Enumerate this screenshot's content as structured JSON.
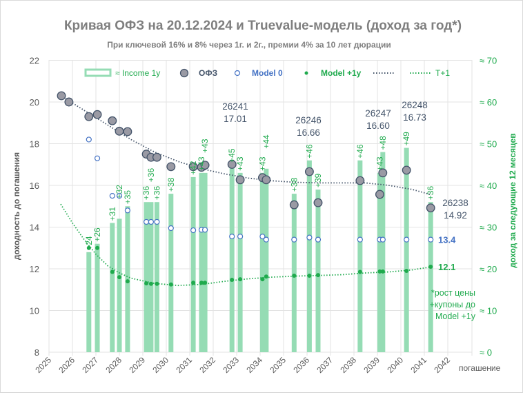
{
  "chart_data": {
    "type": "scatter",
    "title": "Кривая ОФЗ на 20.12.2024 и Truevalue-модель (доход за год*)",
    "subtitle": "При ключевой 16% и 8% через 1г. и 2г., премии 4% за 10 лет дюрации",
    "xlabel": "погашение",
    "ylabel": "доходность до погашения",
    "y2label": "доход за следующие 12 месяцев",
    "xlim": [
      2025,
      2042
    ],
    "ylim": [
      8,
      22
    ],
    "y2lim": [
      0,
      70
    ],
    "x_ticks": [
      "2025",
      "2026",
      "2027",
      "2028",
      "2029",
      "2030",
      "2031",
      "2032",
      "2033",
      "2034",
      "2035",
      "2036",
      "2037",
      "2038",
      "2039",
      "2040",
      "2041",
      "2042"
    ],
    "y_ticks": [
      "8",
      "10",
      "12",
      "14",
      "16",
      "18",
      "20",
      "22"
    ],
    "y2_ticks": [
      "≈ 0",
      "≈ 10",
      "≈ 20",
      "≈ 30",
      "≈ 40",
      "≈ 50",
      "≈ 60",
      "≈ 70"
    ],
    "grid": true,
    "legend_position": "top",
    "legend": [
      "≈ Income 1y",
      "ОФЗ",
      "Model 0",
      "Model +1y",
      "",
      "T+1"
    ],
    "colors": {
      "ofz_fill": "#9a9aa4",
      "ofz_stroke": "#44546a",
      "model0": "#4472c4",
      "model1y": "#1faa4d",
      "income": "#95dcb4",
      "trend": "#44546a",
      "t1": "#1faa4d",
      "label_blue": "#44546a",
      "label_green": "#1faa4d"
    },
    "bonds": [
      {
        "year": 2025.53,
        "ofz": 20.3,
        "model0": null,
        "model1y": null,
        "income": null
      },
      {
        "year": 2025.85,
        "ofz": 20.0,
        "model0": null,
        "model1y": null,
        "income": null
      },
      {
        "year": 2026.7,
        "ofz": 19.3,
        "model0": 18.2,
        "model1y": 13.0,
        "income": 24
      },
      {
        "year": 2027.06,
        "ofz": 19.4,
        "model0": 17.3,
        "model1y": 13.0,
        "income": 26
      },
      {
        "year": 2027.7,
        "ofz": 19.1,
        "model0": 15.5,
        "model1y": 11.85,
        "income": 31
      },
      {
        "year": 2028.0,
        "ofz": 18.6,
        "model0": 15.5,
        "model1y": 11.6,
        "income": 32
      },
      {
        "year": 2028.35,
        "ofz": 18.58,
        "model0": 14.8,
        "model1y": 11.4,
        "income": 35
      },
      {
        "year": 2029.15,
        "ofz": 17.5,
        "model0": 14.25,
        "model1y": 11.3,
        "income": 36
      },
      {
        "year": 2029.35,
        "ofz": 17.35,
        "model0": 14.25,
        "model1y": 11.28,
        "income": 36
      },
      {
        "year": 2029.6,
        "ofz": 17.35,
        "model0": 14.25,
        "model1y": 11.28,
        "income": 36
      },
      {
        "year": 2030.2,
        "ofz": 16.9,
        "model0": 13.95,
        "model1y": 11.25,
        "income": 38
      },
      {
        "year": 2031.15,
        "ofz": 16.9,
        "model0": 13.85,
        "model1y": 11.33,
        "income": 42
      },
      {
        "year": 2031.5,
        "ofz": 16.87,
        "model0": 13.87,
        "model1y": 11.33,
        "income": 43
      },
      {
        "year": 2031.65,
        "ofz": 16.97,
        "model0": 13.87,
        "model1y": 11.33,
        "income": 43
      },
      {
        "year": 2032.8,
        "ofz": 17.01,
        "model0": 13.55,
        "model1y": 11.47,
        "income": 45
      },
      {
        "year": 2033.15,
        "ofz": 16.27,
        "model0": 13.55,
        "model1y": 11.5,
        "income": 43
      },
      {
        "year": 2034.1,
        "ofz": 16.37,
        "model0": 13.55,
        "model1y": 11.5,
        "income": 43
      },
      {
        "year": 2034.26,
        "ofz": 16.27,
        "model0": 13.4,
        "model1y": 11.63,
        "income": 44
      },
      {
        "year": 2035.45,
        "ofz": 15.07,
        "model0": 13.4,
        "model1y": 11.67,
        "income": 38
      },
      {
        "year": 2036.1,
        "ofz": 16.66,
        "model0": 13.5,
        "model1y": 11.67,
        "income": 46
      },
      {
        "year": 2036.47,
        "ofz": 15.17,
        "model0": 13.4,
        "model1y": 11.7,
        "income": 39
      },
      {
        "year": 2038.26,
        "ofz": 16.23,
        "model0": 13.4,
        "model1y": 11.85,
        "income": 46
      },
      {
        "year": 2039.1,
        "ofz": 15.57,
        "model0": 13.4,
        "model1y": 11.87,
        "income": 43
      },
      {
        "year": 2039.23,
        "ofz": 16.6,
        "model0": 13.4,
        "model1y": 11.87,
        "income": 48
      },
      {
        "year": 2040.24,
        "ofz": 16.73,
        "model0": 13.4,
        "model1y": 11.9,
        "income": 49
      },
      {
        "year": 2041.27,
        "ofz": 14.92,
        "model0": 13.4,
        "model1y": 12.1,
        "income": 36
      }
    ],
    "ofz_trend": [
      [
        2025.5,
        20.3
      ],
      [
        2026.5,
        19.6
      ],
      [
        2027.5,
        18.9
      ],
      [
        2028.5,
        18.2
      ],
      [
        2029.5,
        17.6
      ],
      [
        2030.5,
        17.15
      ],
      [
        2031.5,
        16.8
      ],
      [
        2032.5,
        16.55
      ],
      [
        2033.5,
        16.35
      ],
      [
        2034.5,
        16.22
      ],
      [
        2035.5,
        16.15
      ],
      [
        2036.5,
        16.12
      ],
      [
        2037.5,
        16.12
      ],
      [
        2038.5,
        16.12
      ],
      [
        2039.5,
        16.0
      ],
      [
        2040.5,
        15.8
      ],
      [
        2041.3,
        15.55
      ]
    ],
    "t1_trend": [
      [
        2025.5,
        15.1
      ],
      [
        2026,
        14.2
      ],
      [
        2026.5,
        13.4
      ],
      [
        2027,
        12.7
      ],
      [
        2027.5,
        12.15
      ],
      [
        2028,
        11.8
      ],
      [
        2028.5,
        11.55
      ],
      [
        2029.5,
        11.3
      ],
      [
        2030.5,
        11.2
      ],
      [
        2031.5,
        11.25
      ],
      [
        2032.5,
        11.4
      ],
      [
        2033.5,
        11.52
      ],
      [
        2034.5,
        11.6
      ],
      [
        2035.5,
        11.65
      ],
      [
        2036.5,
        11.68
      ],
      [
        2037.5,
        11.72
      ],
      [
        2038.5,
        11.8
      ],
      [
        2039.5,
        11.85
      ],
      [
        2040.5,
        11.95
      ],
      [
        2041.3,
        12.1
      ]
    ],
    "callouts": [
      {
        "id": "26241",
        "value": "17.01"
      },
      {
        "id": "26246",
        "value": "16.66"
      },
      {
        "id": "26247",
        "value": "16.60"
      },
      {
        "id": "26248",
        "value": "16.73"
      },
      {
        "id": "26238",
        "value": "14.92"
      }
    ],
    "end_labels": {
      "model0": "13.4",
      "model1y": "12.1"
    },
    "footnote": [
      "*рост цены",
      "+купоны до",
      "Model +1y"
    ]
  }
}
